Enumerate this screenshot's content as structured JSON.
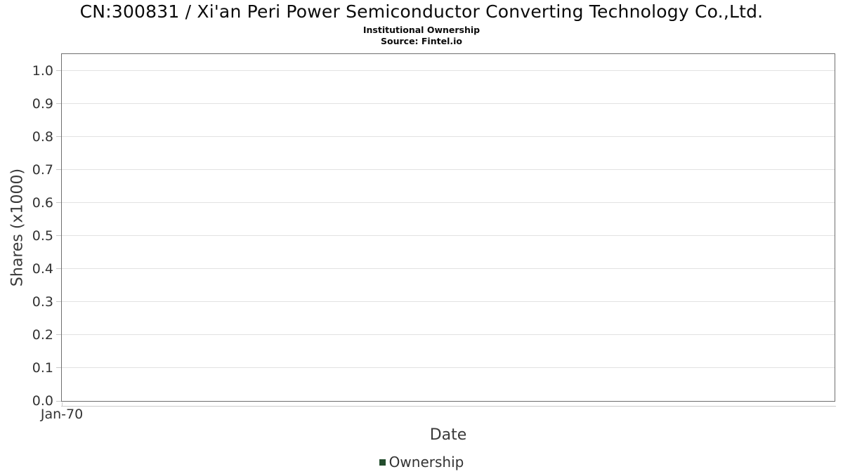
{
  "header": {
    "title": "CN:300831 / Xi'an Peri Power Semiconductor Converting Technology Co.,Ltd.",
    "subtitle": "Institutional Ownership",
    "source": "Source: Fintel.io"
  },
  "chart_data": {
    "type": "line",
    "title": "CN:300831 / Xi'an Peri Power Semiconductor Converting Technology Co.,Ltd.",
    "subtitle": "Institutional Ownership",
    "source": "Source: Fintel.io",
    "xlabel": "Date",
    "ylabel": "Shares (x1000)",
    "x_ticks": [
      {
        "label": "Jan-70",
        "pos": 0
      }
    ],
    "y_ticks": [
      0.0,
      0.1,
      0.2,
      0.3,
      0.4,
      0.5,
      0.6,
      0.7,
      0.8,
      0.9,
      1.0
    ],
    "ylim": [
      0,
      1.05
    ],
    "xlim_labels": [
      "Jan-70"
    ],
    "grid": true,
    "plot_border": true,
    "legend_position": "bottom-center",
    "series": [
      {
        "name": "Ownership",
        "color": "#234d2d",
        "x": [],
        "y": []
      }
    ]
  },
  "colors": {
    "background": "#ffffff",
    "plot_border": "#6e6e6e",
    "gridline": "#e2e2e2",
    "tick_text": "#333333",
    "axis_title_text": "#3a3a3a",
    "title_text": "#0b0b0b",
    "legend_swatch": "#234d2d"
  }
}
